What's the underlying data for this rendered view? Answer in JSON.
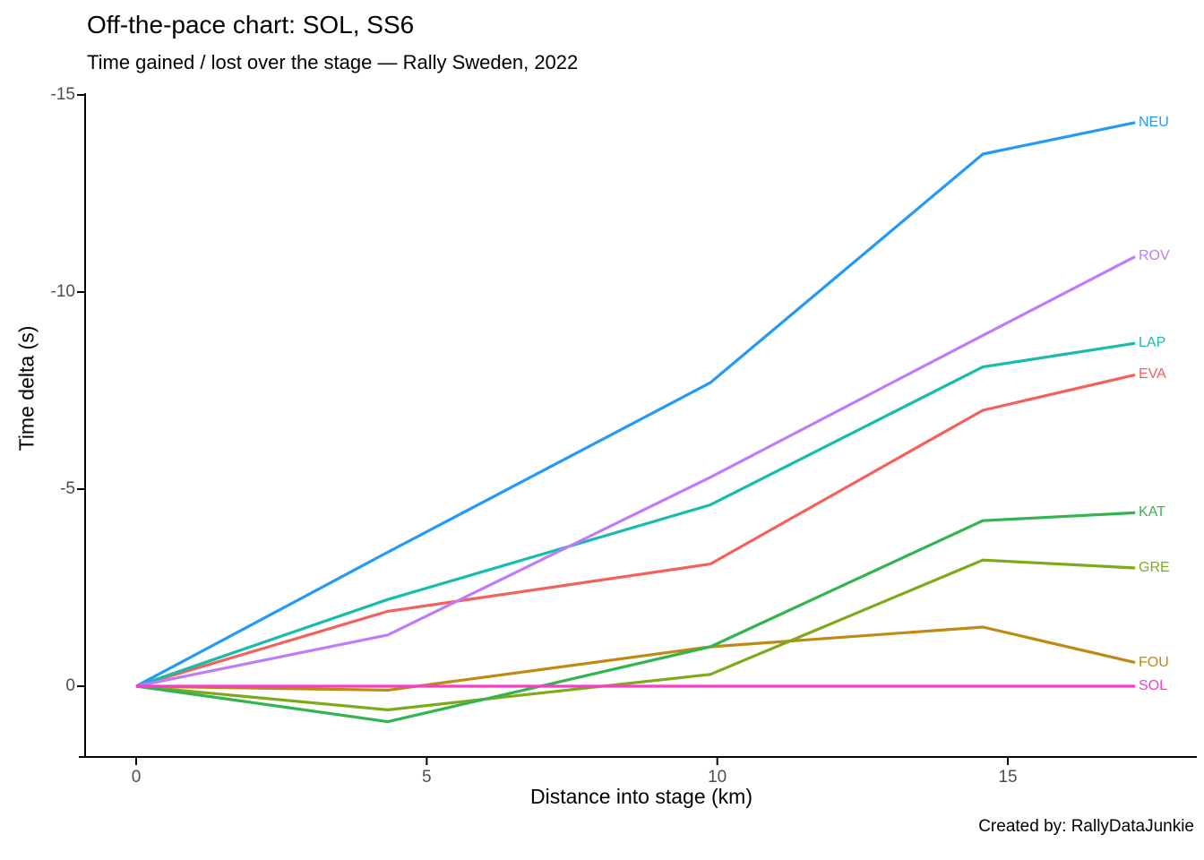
{
  "header": {
    "title": "Off-the-pace chart: SOL, SS6",
    "subtitle": "Time gained / lost over the stage — Rally Sweden, 2022"
  },
  "caption": "Created by: RallyDataJunkie",
  "chart_data": {
    "type": "line",
    "title": "Off-the-pace chart: SOL, SS6",
    "subtitle": "Time gained / lost over the stage — Rally Sweden, 2022",
    "xlabel": "Distance into stage (km)",
    "ylabel": "Time delta (s)",
    "caption": "Created by: RallyDataJunkie",
    "grid": false,
    "background": "#ffffff",
    "axis_line_color": "#000000",
    "tick_text_color": "#4d4d4d",
    "y_axis_reversed": true,
    "xlim": [
      -0.9,
      18.3
    ],
    "ylim_bottom_to_top": [
      1.8,
      -15.1
    ],
    "x_ticks": [
      {
        "value": 0,
        "label": "0"
      },
      {
        "value": 5,
        "label": "5"
      },
      {
        "value": 10,
        "label": "10"
      },
      {
        "value": 15,
        "label": "15"
      }
    ],
    "y_ticks": [
      {
        "value": 0,
        "label": "0"
      },
      {
        "value": -5,
        "label": "-5"
      },
      {
        "value": -10,
        "label": "-10"
      },
      {
        "value": -15,
        "label": "-15"
      }
    ],
    "legend_position": "direct-labels-at-line-ends",
    "x": [
      0,
      4.33,
      9.88,
      14.57,
      17.19
    ],
    "series": [
      {
        "name": "EVA",
        "color": "#F4615A",
        "values": [
          0,
          -1.9,
          -3.1,
          -7.0,
          -7.9
        ]
      },
      {
        "name": "FOU",
        "color": "#BE8A12",
        "values": [
          0,
          0.1,
          -1.0,
          -1.5,
          -0.6
        ]
      },
      {
        "name": "GRE",
        "color": "#7EAA1A",
        "values": [
          0,
          0.6,
          -0.3,
          -3.2,
          -3.0
        ]
      },
      {
        "name": "KAT",
        "color": "#32B44F",
        "values": [
          0,
          0.9,
          -1.0,
          -4.2,
          -4.4
        ]
      },
      {
        "name": "LAP",
        "color": "#17BCAB",
        "values": [
          0,
          -2.2,
          -4.6,
          -8.1,
          -8.7
        ]
      },
      {
        "name": "NEU",
        "color": "#2499F5",
        "values": [
          0,
          -3.4,
          -7.7,
          -13.5,
          -14.3
        ]
      },
      {
        "name": "ROV",
        "color": "#BE7CF9",
        "values": [
          0,
          -1.3,
          -5.3,
          -8.9,
          -10.9
        ]
      },
      {
        "name": "SOL",
        "color": "#F73EC3",
        "values": [
          0,
          0.0,
          0.0,
          0.0,
          0.0
        ]
      }
    ]
  }
}
